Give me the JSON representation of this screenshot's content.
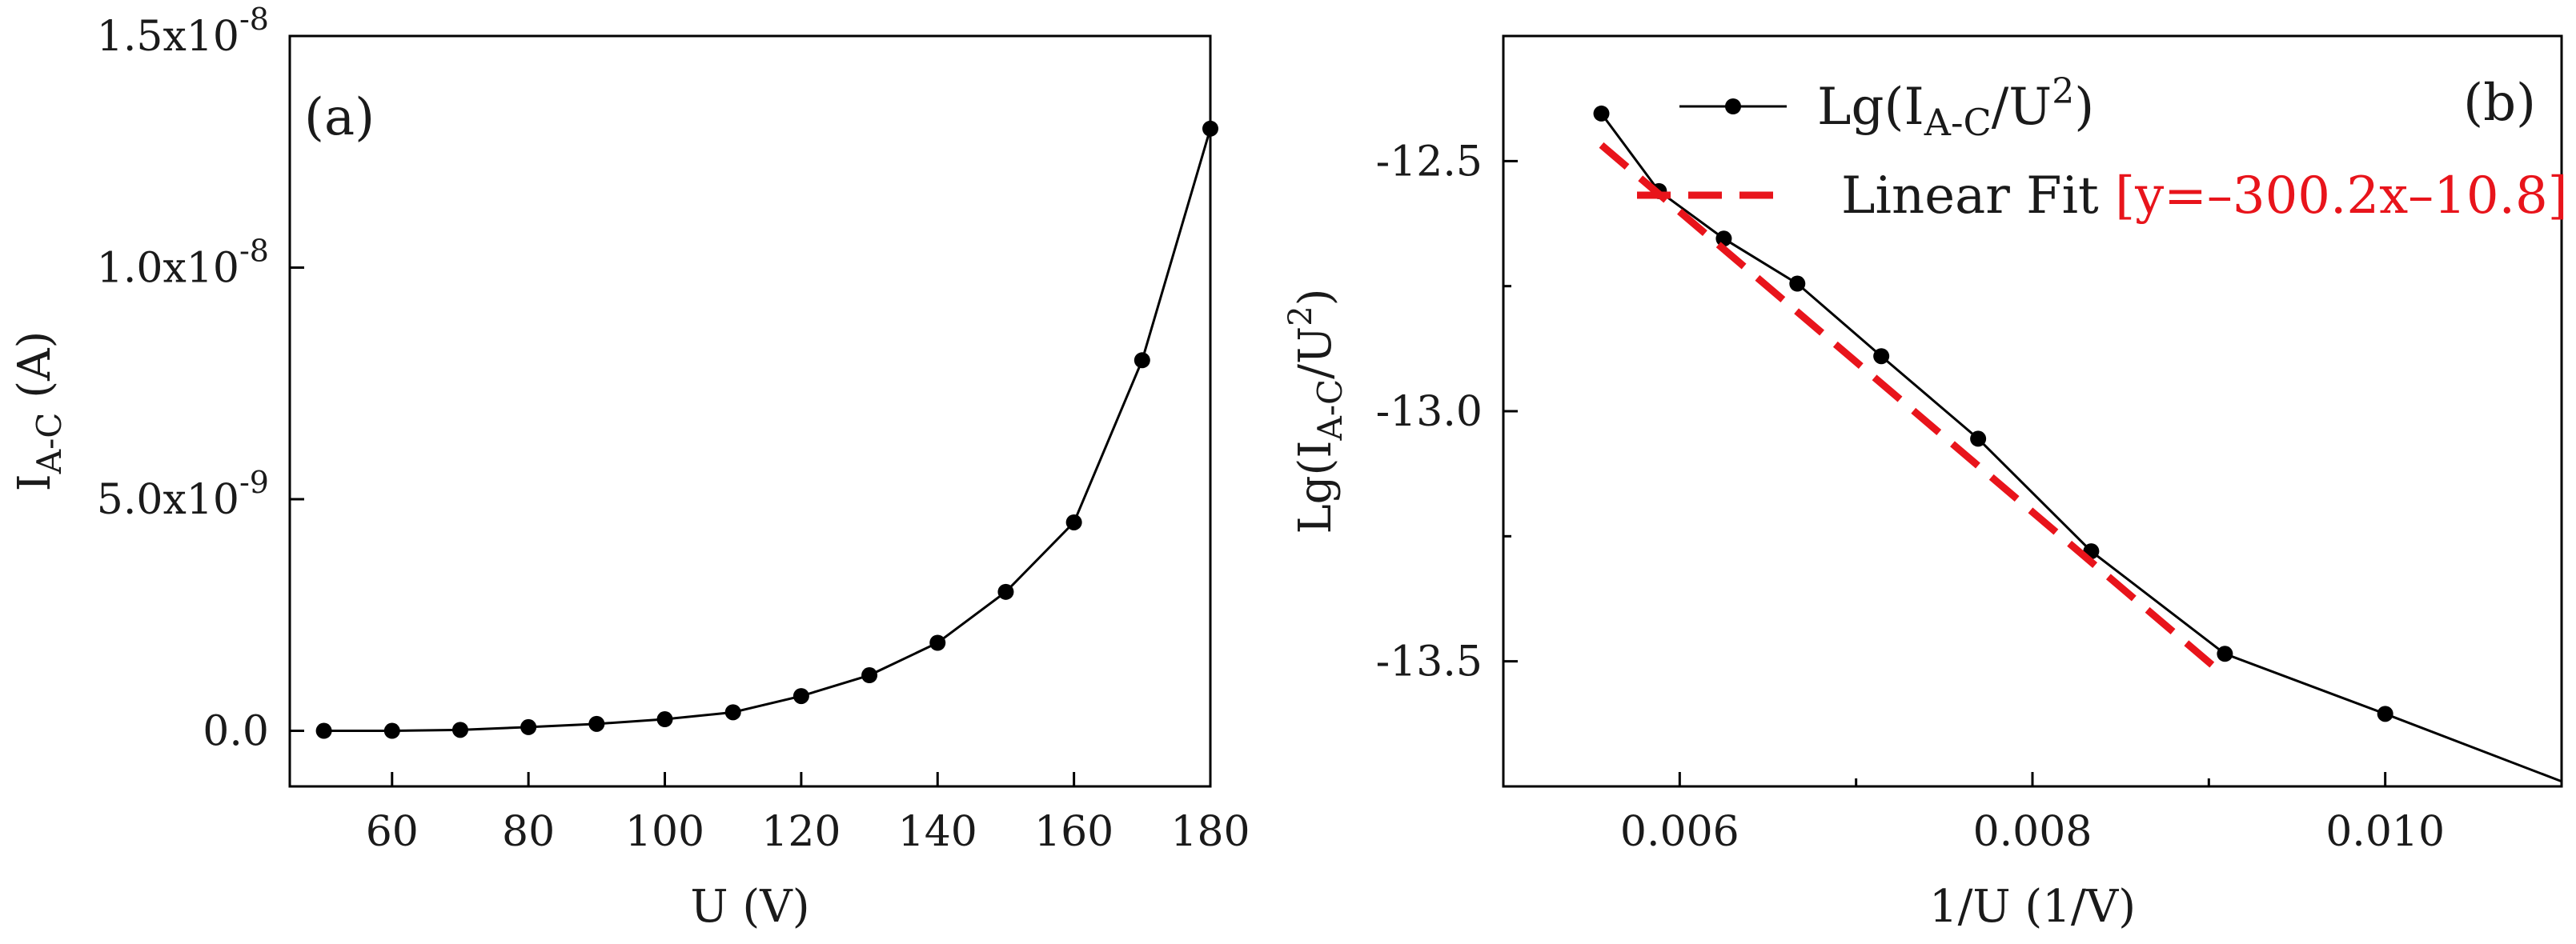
{
  "chart_data": [
    {
      "panel_label": "(a)",
      "type": "line",
      "xlabel": "U (V)",
      "ylabel_main": "I",
      "ylabel_sub": "A-C",
      "ylabel_unit": " (A)",
      "xlim": [
        45,
        180
      ],
      "ylim": [
        -1.2e-09,
        1.5e-08
      ],
      "xticks": [
        60,
        80,
        100,
        120,
        140,
        160,
        180
      ],
      "yticks": [
        {
          "value": 0,
          "mantissa": "0.0",
          "exponent": ""
        },
        {
          "value": 5e-09,
          "mantissa": "5.0x10",
          "exponent": "-9"
        },
        {
          "value": 1e-08,
          "mantissa": "1.0x10",
          "exponent": "-8"
        },
        {
          "value": 1.5e-08,
          "mantissa": "1.5x10",
          "exponent": "-8"
        }
      ],
      "marker": "circle",
      "line_color": "#000000",
      "x": [
        50,
        60,
        70,
        80,
        90,
        100,
        110,
        120,
        130,
        140,
        150,
        160,
        170,
        180
      ],
      "y": [
        0,
        0,
        2e-11,
        8e-11,
        1.5e-10,
        2.5e-10,
        4e-10,
        7.5e-10,
        1.2e-09,
        1.9e-09,
        3e-09,
        4.5e-09,
        8e-09,
        1.3e-08
      ]
    },
    {
      "panel_label": "(b)",
      "type": "line",
      "xlabel": "1/U (1/V)",
      "ylabel_text": "Lg(I",
      "ylabel_sub": "A-C",
      "ylabel_mid": "/U",
      "ylabel_sup": "2",
      "ylabel_end": ")",
      "xlim": [
        0.005,
        0.011
      ],
      "ylim": [
        -13.75,
        -12.25
      ],
      "xticks": [
        0.006,
        0.008,
        0.01
      ],
      "xtick_labels": [
        "0.006",
        "0.008",
        "0.010"
      ],
      "yticks": [
        -12.5,
        -13.0,
        -13.5
      ],
      "ytick_labels": [
        "-12.5",
        "-13.0",
        "-13.5"
      ],
      "series": [
        {
          "name": "Lg(I_A-C/U^2)",
          "color": "#000000",
          "marker": "circle",
          "x": [
            0.005556,
            0.005882,
            0.00625,
            0.006667,
            0.007143,
            0.007692,
            0.008333,
            0.009091,
            0.01,
            0.011
          ],
          "y": [
            -12.405,
            -12.56,
            -12.655,
            -12.745,
            -12.89,
            -13.055,
            -13.28,
            -13.485,
            -13.605,
            -13.74
          ]
        },
        {
          "name": "Linear Fit",
          "color": "#e8141b",
          "style": "dashed",
          "x": [
            0.005556,
            0.009091
          ],
          "y": [
            -12.468,
            -13.529
          ]
        }
      ],
      "legend": {
        "position": "top-right",
        "entries": [
          {
            "prefix": "Lg(I",
            "sub": "A-C",
            "mid": "/U",
            "sup": "2",
            "suffix": ")"
          },
          {
            "label": "Linear Fit ",
            "equation": "[y=–300.2x–10.8]"
          }
        ]
      }
    }
  ]
}
